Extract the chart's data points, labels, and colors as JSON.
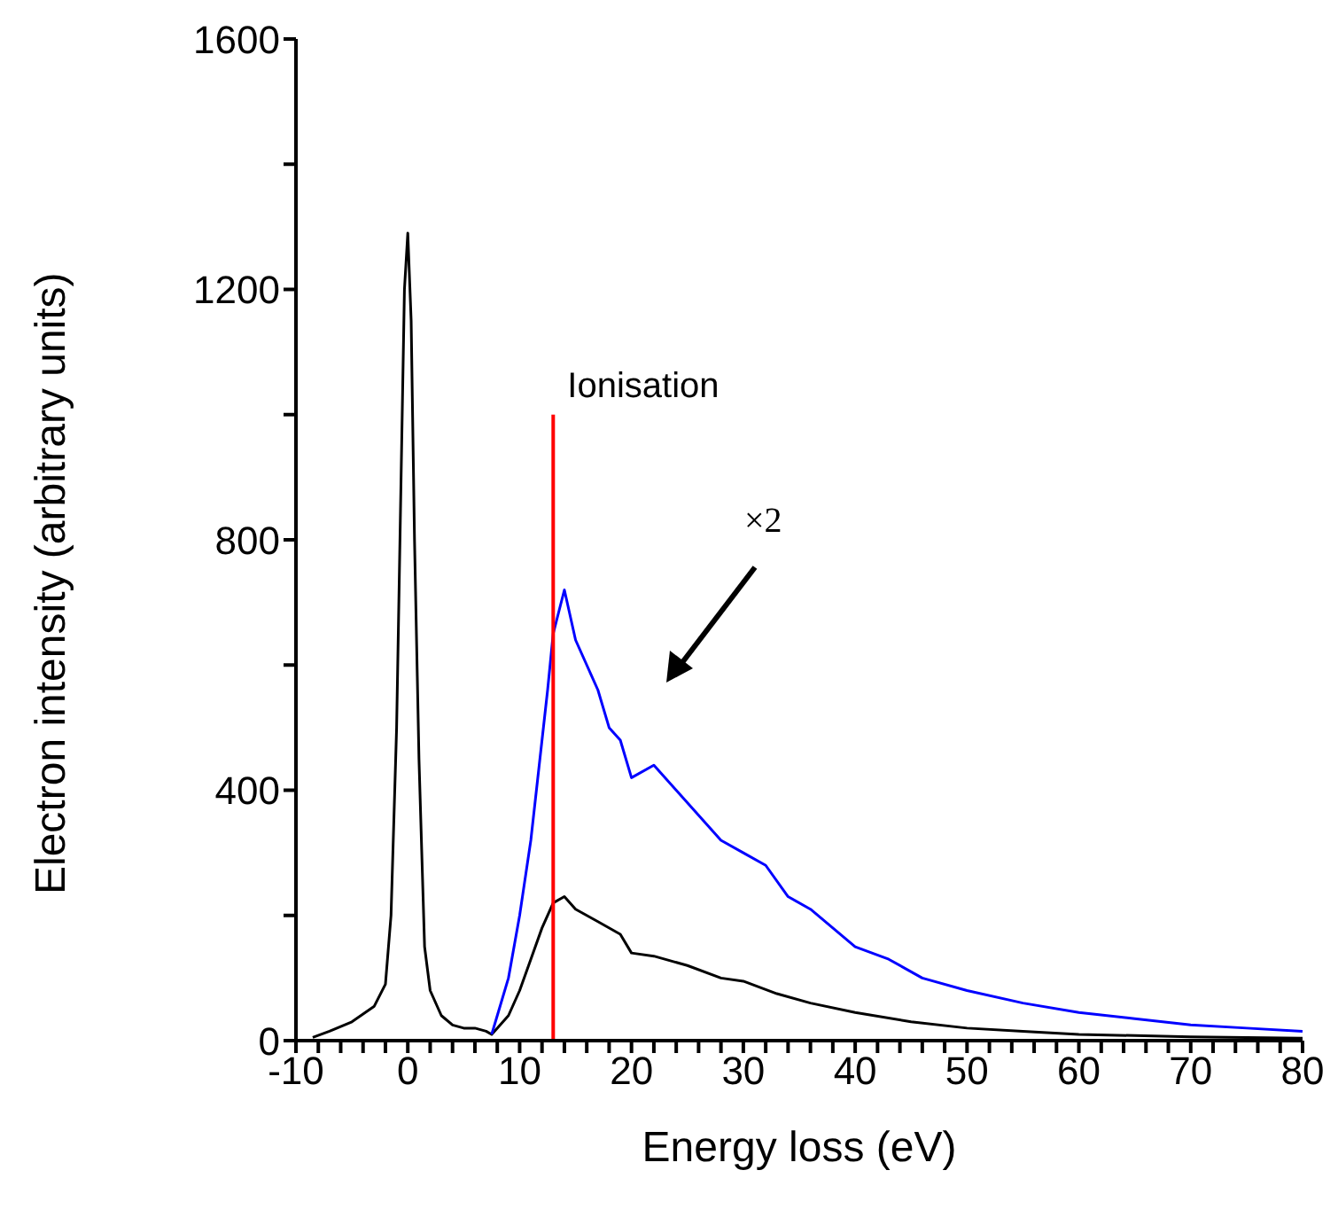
{
  "chart_data": {
    "type": "line",
    "xlabel": "Energy loss (eV)",
    "ylabel": "Electron intensity (arbitrary units)",
    "xlim": [
      -10,
      80
    ],
    "xticks": [
      -10,
      {
        "value": -8,
        "label": null
      },
      {
        "value": -6,
        "label": null
      },
      {
        "value": -4,
        "label": null
      },
      {
        "value": -2,
        "label": null
      },
      0,
      {
        "value": 2,
        "label": null
      },
      {
        "value": 4,
        "label": null
      },
      {
        "value": 6,
        "label": null
      },
      {
        "value": 8,
        "label": null
      },
      10,
      {
        "value": 12,
        "label": null
      },
      {
        "value": 14,
        "label": null
      },
      {
        "value": 16,
        "label": null
      },
      {
        "value": 18,
        "label": null
      },
      20,
      {
        "value": 22,
        "label": null
      },
      {
        "value": 24,
        "label": null
      },
      {
        "value": 26,
        "label": null
      },
      {
        "value": 28,
        "label": null
      },
      30,
      {
        "value": 32,
        "label": null
      },
      {
        "value": 34,
        "label": null
      },
      {
        "value": 36,
        "label": null
      },
      {
        "value": 38,
        "label": null
      },
      40,
      {
        "value": 42,
        "label": null
      },
      {
        "value": 44,
        "label": null
      },
      {
        "value": 46,
        "label": null
      },
      {
        "value": 48,
        "label": null
      },
      50,
      {
        "value": 52,
        "label": null
      },
      {
        "value": 54,
        "label": null
      },
      {
        "value": 56,
        "label": null
      },
      {
        "value": 58,
        "label": null
      },
      60,
      {
        "value": 62,
        "label": null
      },
      {
        "value": 64,
        "label": null
      },
      {
        "value": 66,
        "label": null
      },
      {
        "value": 68,
        "label": null
      },
      70,
      {
        "value": 72,
        "label": null
      },
      {
        "value": 74,
        "label": null
      },
      {
        "value": 76,
        "label": null
      },
      {
        "value": 78,
        "label": null
      },
      80
    ],
    "ylim": [
      0,
      1600
    ],
    "yticks": [
      0,
      {
        "value": 200,
        "label": null
      },
      400,
      {
        "value": 600,
        "label": null
      },
      800,
      {
        "value": 1000,
        "label": null
      },
      1200,
      {
        "value": 1400,
        "label": null
      },
      1600
    ],
    "marker": "none",
    "line_style": "solid",
    "series": [
      {
        "color": "#000000",
        "x": [
          -8.5,
          -7,
          -5,
          -3,
          -2,
          -1.5,
          -1,
          -0.6,
          -0.3,
          0,
          0.3,
          0.6,
          1,
          1.5,
          2,
          3,
          4,
          5,
          6,
          7,
          7.5,
          8,
          9,
          10,
          11,
          12,
          13,
          14,
          15,
          17,
          19,
          20,
          22,
          25,
          28,
          30,
          33,
          36,
          40,
          45,
          50,
          55,
          60,
          65,
          70,
          75,
          80
        ],
        "values": [
          5,
          15,
          30,
          55,
          90,
          200,
          500,
          900,
          1200,
          1290,
          1150,
          800,
          450,
          150,
          80,
          40,
          25,
          20,
          20,
          15,
          10,
          20,
          40,
          80,
          130,
          180,
          220,
          230,
          210,
          190,
          170,
          140,
          135,
          120,
          100,
          95,
          75,
          60,
          45,
          30,
          20,
          15,
          10,
          8,
          6,
          5,
          4
        ]
      },
      {
        "color": "#0000ff",
        "x": [
          7.5,
          8,
          9,
          10,
          11,
          12,
          12.5,
          13,
          14,
          15,
          16,
          17,
          18,
          19,
          20,
          22,
          24,
          26,
          28,
          30,
          32,
          34,
          36,
          38,
          40,
          43,
          46,
          50,
          55,
          60,
          65,
          70,
          75,
          80
        ],
        "values": [
          10,
          40,
          100,
          200,
          320,
          480,
          560,
          650,
          720,
          640,
          600,
          560,
          500,
          480,
          420,
          440,
          400,
          360,
          320,
          300,
          280,
          230,
          210,
          180,
          150,
          130,
          100,
          80,
          60,
          45,
          35,
          25,
          20,
          15
        ]
      },
      {
        "color": "#ff0000",
        "x": [
          13,
          13
        ],
        "values": [
          0,
          1000
        ]
      }
    ],
    "annotations": [
      {
        "text": "Ionisation",
        "x": 13,
        "y": 1000
      },
      "×2"
    ]
  }
}
